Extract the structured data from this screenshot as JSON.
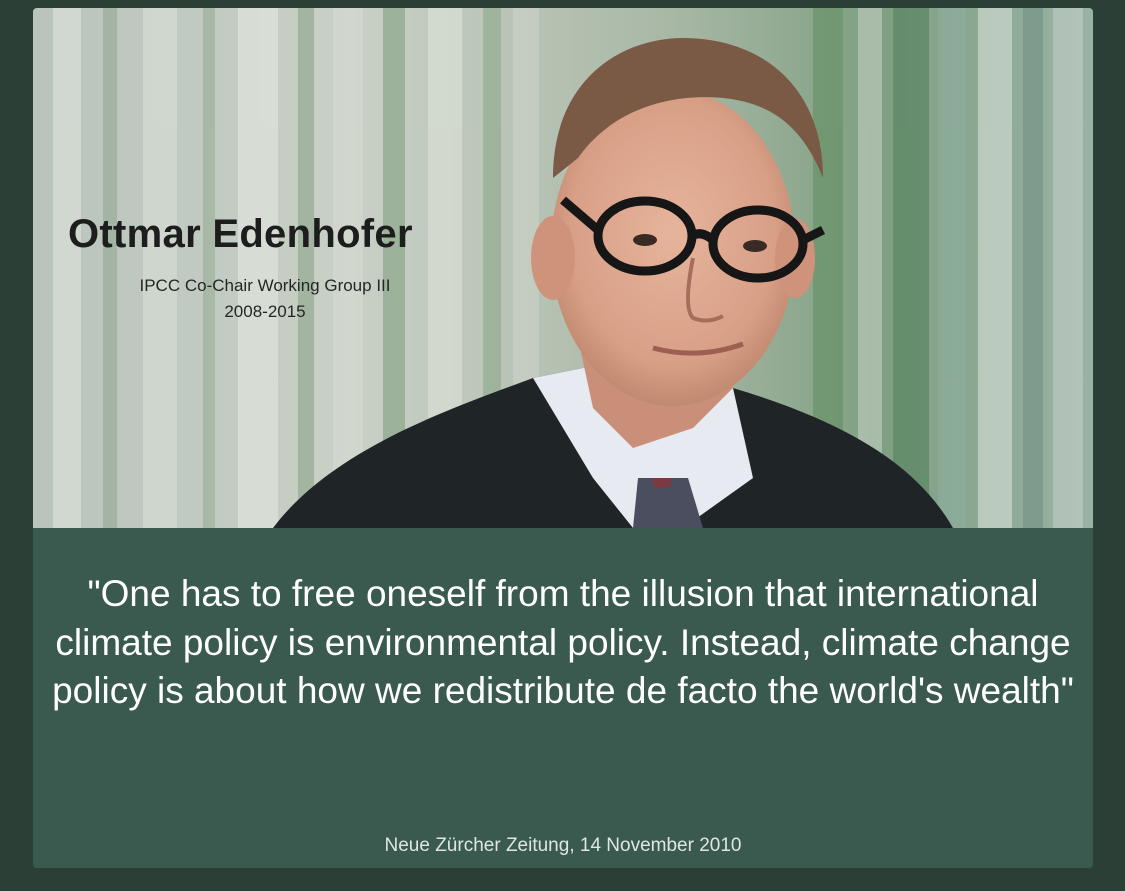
{
  "person": {
    "name": "Ottmar Edenhofer",
    "role_line1": "IPCC Co-Chair Working Group III",
    "role_line2": "2008-2015"
  },
  "quote": {
    "text": "\"One has to free oneself from the illusion that international climate policy is environmental policy. Instead, climate change policy is about how we redistribute de facto the world's wealth\"",
    "source": "Neue Zürcher Zeitung, 14 November 2010"
  },
  "colors": {
    "page_background": "#2b3f37",
    "quote_panel": "#3a5a4f",
    "quote_text": "#ffffff"
  }
}
